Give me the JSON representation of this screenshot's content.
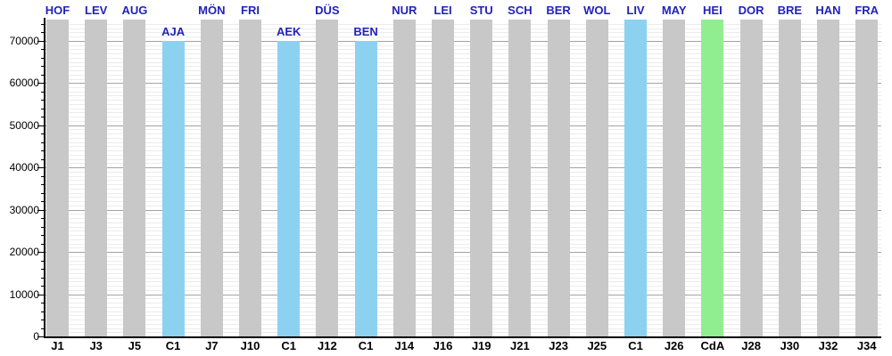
{
  "chart_data": {
    "type": "bar",
    "title": "",
    "xlabel": "",
    "ylabel": "",
    "ylim": [
      0,
      75000
    ],
    "grid": "on",
    "y_major_step": 10000,
    "y_minor_grid_step": 1000,
    "y_minor_tick_step": 2000,
    "y_major_tick_labels": [
      "0",
      "10000",
      "20000",
      "30000",
      "40000",
      "50000",
      "60000",
      "70000"
    ],
    "legend_position": "none",
    "colors": {
      "league_bar": "#C8C8C8",
      "european_bar": "#8CD2F0",
      "cup_bar": "#90EE90",
      "top_label_text": "#2222BB",
      "x_label_text": "#000000",
      "axis": "#000000",
      "major_grid": "#A3A3A3",
      "minor_grid": "#ECECEC"
    },
    "bars": [
      {
        "x": "J1",
        "label": "HOF",
        "value": 75000,
        "type": "league"
      },
      {
        "x": "J3",
        "label": "LEV",
        "value": 75000,
        "type": "league"
      },
      {
        "x": "J5",
        "label": "AUG",
        "value": 75000,
        "type": "league"
      },
      {
        "x": "C1",
        "label": "AJA",
        "value": 70000,
        "type": "european"
      },
      {
        "x": "J7",
        "label": "MÖN",
        "value": 75000,
        "type": "league"
      },
      {
        "x": "J10",
        "label": "FRI",
        "value": 75000,
        "type": "league"
      },
      {
        "x": "C1",
        "label": "AEK",
        "value": 70000,
        "type": "european"
      },
      {
        "x": "J12",
        "label": "DÜS",
        "value": 75000,
        "type": "league"
      },
      {
        "x": "C1",
        "label": "BEN",
        "value": 70000,
        "type": "european"
      },
      {
        "x": "J14",
        "label": "NUR",
        "value": 75000,
        "type": "league"
      },
      {
        "x": "J16",
        "label": "LEI",
        "value": 75000,
        "type": "league"
      },
      {
        "x": "J19",
        "label": "STU",
        "value": 75000,
        "type": "league"
      },
      {
        "x": "J21",
        "label": "SCH",
        "value": 75000,
        "type": "league"
      },
      {
        "x": "J23",
        "label": "BER",
        "value": 75000,
        "type": "league"
      },
      {
        "x": "J25",
        "label": "WOL",
        "value": 75000,
        "type": "league"
      },
      {
        "x": "C1",
        "label": "LIV",
        "value": 75000,
        "type": "european"
      },
      {
        "x": "J26",
        "label": "MAY",
        "value": 75000,
        "type": "league"
      },
      {
        "x": "CdA",
        "label": "HEI",
        "value": 75000,
        "type": "cup"
      },
      {
        "x": "J28",
        "label": "DOR",
        "value": 75000,
        "type": "league"
      },
      {
        "x": "J30",
        "label": "BRE",
        "value": 75000,
        "type": "league"
      },
      {
        "x": "J32",
        "label": "HAN",
        "value": 75000,
        "type": "league"
      },
      {
        "x": "J34",
        "label": "FRA",
        "value": 75000,
        "type": "league"
      }
    ]
  }
}
